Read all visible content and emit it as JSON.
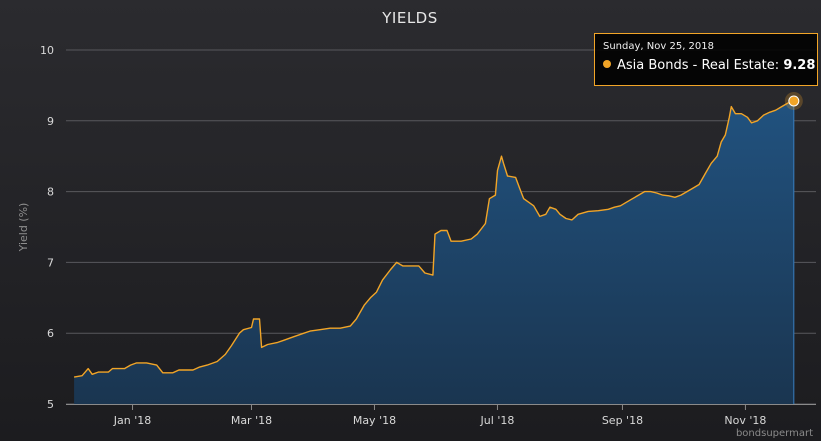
{
  "colors": {
    "line": "#f2a527",
    "area_top": "#21527f",
    "area_bottom": "#1a3550",
    "grid": "#58585d",
    "axis": "#8a8a8a"
  },
  "chart_data": {
    "type": "area",
    "title": "YIELDS",
    "xlabel": "",
    "ylabel": "Yield (%)",
    "ylim": [
      5,
      10
    ],
    "xlim": [
      "2017-11-29",
      "2018-12-06"
    ],
    "y_ticks": [
      "5",
      "6",
      "7",
      "8",
      "9",
      "10"
    ],
    "x_ticks": [
      {
        "label": "Jan '18",
        "date": "2018-01-01"
      },
      {
        "label": "Mar '18",
        "date": "2018-03-01"
      },
      {
        "label": "May '18",
        "date": "2018-05-01"
      },
      {
        "label": "Jul '18",
        "date": "2018-07-01"
      },
      {
        "label": "Sep '18",
        "date": "2018-09-01"
      },
      {
        "label": "Nov '18",
        "date": "2018-11-01"
      }
    ],
    "grid": true,
    "legend": "none",
    "series": [
      {
        "name": "Asia Bonds - Real Estate",
        "points": [
          [
            "2017-12-03",
            5.38
          ],
          [
            "2017-12-07",
            5.4
          ],
          [
            "2017-12-10",
            5.5
          ],
          [
            "2017-12-12",
            5.42
          ],
          [
            "2017-12-15",
            5.45
          ],
          [
            "2017-12-20",
            5.45
          ],
          [
            "2017-12-22",
            5.5
          ],
          [
            "2017-12-28",
            5.5
          ],
          [
            "2017-12-31",
            5.55
          ],
          [
            "2018-01-03",
            5.58
          ],
          [
            "2018-01-08",
            5.58
          ],
          [
            "2018-01-13",
            5.55
          ],
          [
            "2018-01-16",
            5.44
          ],
          [
            "2018-01-21",
            5.44
          ],
          [
            "2018-01-24",
            5.48
          ],
          [
            "2018-01-31",
            5.48
          ],
          [
            "2018-02-03",
            5.52
          ],
          [
            "2018-02-07",
            5.55
          ],
          [
            "2018-02-12",
            5.6
          ],
          [
            "2018-02-16",
            5.7
          ],
          [
            "2018-02-19",
            5.82
          ],
          [
            "2018-02-23",
            6.0
          ],
          [
            "2018-02-25",
            6.05
          ],
          [
            "2018-03-01",
            6.08
          ],
          [
            "2018-03-02",
            6.2
          ],
          [
            "2018-03-05",
            6.2
          ],
          [
            "2018-03-06",
            5.8
          ],
          [
            "2018-03-09",
            5.84
          ],
          [
            "2018-03-14",
            5.87
          ],
          [
            "2018-03-17",
            5.9
          ],
          [
            "2018-03-22",
            5.95
          ],
          [
            "2018-03-27",
            6.0
          ],
          [
            "2018-03-30",
            6.03
          ],
          [
            "2018-04-04",
            6.05
          ],
          [
            "2018-04-09",
            6.07
          ],
          [
            "2018-04-14",
            6.07
          ],
          [
            "2018-04-19",
            6.1
          ],
          [
            "2018-04-22",
            6.2
          ],
          [
            "2018-04-26",
            6.4
          ],
          [
            "2018-04-29",
            6.5
          ],
          [
            "2018-05-02",
            6.58
          ],
          [
            "2018-05-05",
            6.75
          ],
          [
            "2018-05-09",
            6.9
          ],
          [
            "2018-05-12",
            7.0
          ],
          [
            "2018-05-15",
            6.95
          ],
          [
            "2018-05-18",
            6.95
          ],
          [
            "2018-05-23",
            6.95
          ],
          [
            "2018-05-26",
            6.85
          ],
          [
            "2018-05-30",
            6.82
          ],
          [
            "2018-05-31",
            7.4
          ],
          [
            "2018-06-03",
            7.45
          ],
          [
            "2018-06-06",
            7.45
          ],
          [
            "2018-06-08",
            7.3
          ],
          [
            "2018-06-13",
            7.3
          ],
          [
            "2018-06-18",
            7.33
          ],
          [
            "2018-06-21",
            7.4
          ],
          [
            "2018-06-25",
            7.55
          ],
          [
            "2018-06-27",
            7.9
          ],
          [
            "2018-06-30",
            7.95
          ],
          [
            "2018-07-01",
            8.3
          ],
          [
            "2018-07-03",
            8.5
          ],
          [
            "2018-07-04",
            8.4
          ],
          [
            "2018-07-06",
            8.22
          ],
          [
            "2018-07-10",
            8.2
          ],
          [
            "2018-07-12",
            8.05
          ],
          [
            "2018-07-14",
            7.9
          ],
          [
            "2018-07-19",
            7.8
          ],
          [
            "2018-07-22",
            7.65
          ],
          [
            "2018-07-25",
            7.68
          ],
          [
            "2018-07-27",
            7.78
          ],
          [
            "2018-07-30",
            7.75
          ],
          [
            "2018-08-01",
            7.68
          ],
          [
            "2018-08-04",
            7.62
          ],
          [
            "2018-08-07",
            7.6
          ],
          [
            "2018-08-10",
            7.68
          ],
          [
            "2018-08-15",
            7.72
          ],
          [
            "2018-08-20",
            7.73
          ],
          [
            "2018-08-25",
            7.75
          ],
          [
            "2018-08-28",
            7.78
          ],
          [
            "2018-08-31",
            7.8
          ],
          [
            "2018-09-03",
            7.85
          ],
          [
            "2018-09-06",
            7.9
          ],
          [
            "2018-09-09",
            7.95
          ],
          [
            "2018-09-12",
            8.0
          ],
          [
            "2018-09-15",
            8.0
          ],
          [
            "2018-09-18",
            7.98
          ],
          [
            "2018-09-21",
            7.95
          ],
          [
            "2018-09-24",
            7.94
          ],
          [
            "2018-09-27",
            7.92
          ],
          [
            "2018-09-30",
            7.95
          ],
          [
            "2018-10-03",
            8.0
          ],
          [
            "2018-10-06",
            8.05
          ],
          [
            "2018-10-09",
            8.1
          ],
          [
            "2018-10-12",
            8.25
          ],
          [
            "2018-10-15",
            8.4
          ],
          [
            "2018-10-18",
            8.5
          ],
          [
            "2018-10-20",
            8.7
          ],
          [
            "2018-10-22",
            8.8
          ],
          [
            "2018-10-24",
            9.05
          ],
          [
            "2018-10-25",
            9.2
          ],
          [
            "2018-10-27",
            9.1
          ],
          [
            "2018-10-30",
            9.1
          ],
          [
            "2018-11-02",
            9.05
          ],
          [
            "2018-11-04",
            8.97
          ],
          [
            "2018-11-07",
            9.0
          ],
          [
            "2018-11-10",
            9.08
          ],
          [
            "2018-11-13",
            9.12
          ],
          [
            "2018-11-16",
            9.15
          ],
          [
            "2018-11-19",
            9.2
          ],
          [
            "2018-11-22",
            9.25
          ],
          [
            "2018-11-25",
            9.28
          ]
        ]
      }
    ],
    "tooltip": {
      "date": "Sunday, Nov 25, 2018",
      "series": "Asia Bonds - Real Estate",
      "separator": ":",
      "value": "9.28"
    },
    "credit": "bondsupermart"
  }
}
